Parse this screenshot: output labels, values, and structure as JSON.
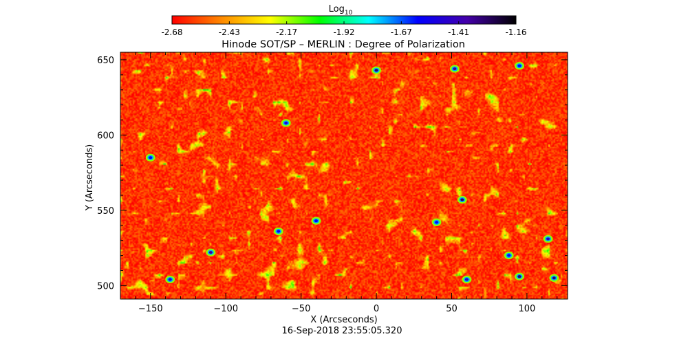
{
  "colorbar": {
    "label": "Log",
    "label_subscript": "10",
    "ticks": [
      "-2.68",
      "-2.43",
      "-2.17",
      "-1.92",
      "-1.67",
      "-1.41",
      "-1.16"
    ],
    "range": [
      -2.68,
      -1.16
    ],
    "colors": [
      "#ff0000",
      "#ff8800",
      "#ffff00",
      "#00ff00",
      "#00ffff",
      "#0000ff",
      "#4400aa",
      "#000000"
    ]
  },
  "chart_data": {
    "type": "heatmap",
    "title": "Hinode SOT/SP – MERLIN : Degree of Polarization",
    "xlabel": "X (Arcseconds)",
    "ylabel": "Y (Arcseconds)",
    "xlim": [
      -170,
      127
    ],
    "ylim": [
      491,
      655
    ],
    "x_ticks": [
      -150,
      -100,
      -50,
      0,
      50,
      100
    ],
    "y_ticks": [
      500,
      550,
      600,
      650
    ],
    "x_minor_step": 10,
    "y_minor_step": 10,
    "value_scale": "log10",
    "value_range": [
      -2.68,
      -1.16
    ],
    "background_level": -2.6,
    "strong_features": [
      {
        "x": -110,
        "y": 522,
        "value": -1.35
      },
      {
        "x": -137,
        "y": 504,
        "value": -1.5
      },
      {
        "x": -150,
        "y": 585,
        "value": -1.6
      },
      {
        "x": -60,
        "y": 608,
        "value": -1.5
      },
      {
        "x": -65,
        "y": 536,
        "value": -1.55
      },
      {
        "x": 0,
        "y": 643,
        "value": -1.3
      },
      {
        "x": 52,
        "y": 644,
        "value": -1.35
      },
      {
        "x": 57,
        "y": 557,
        "value": -1.3
      },
      {
        "x": 60,
        "y": 504,
        "value": -1.45
      },
      {
        "x": 95,
        "y": 506,
        "value": -1.3
      },
      {
        "x": 118,
        "y": 505,
        "value": -1.3
      },
      {
        "x": 114,
        "y": 531,
        "value": -1.45
      },
      {
        "x": -40,
        "y": 543,
        "value": -1.6
      },
      {
        "x": 40,
        "y": 542,
        "value": -1.6
      },
      {
        "x": 88,
        "y": 520,
        "value": -1.55
      },
      {
        "x": 95,
        "y": 646,
        "value": -1.6
      }
    ]
  },
  "footer": {
    "timestamp": "16-Sep-2018 23:55:05.320"
  }
}
